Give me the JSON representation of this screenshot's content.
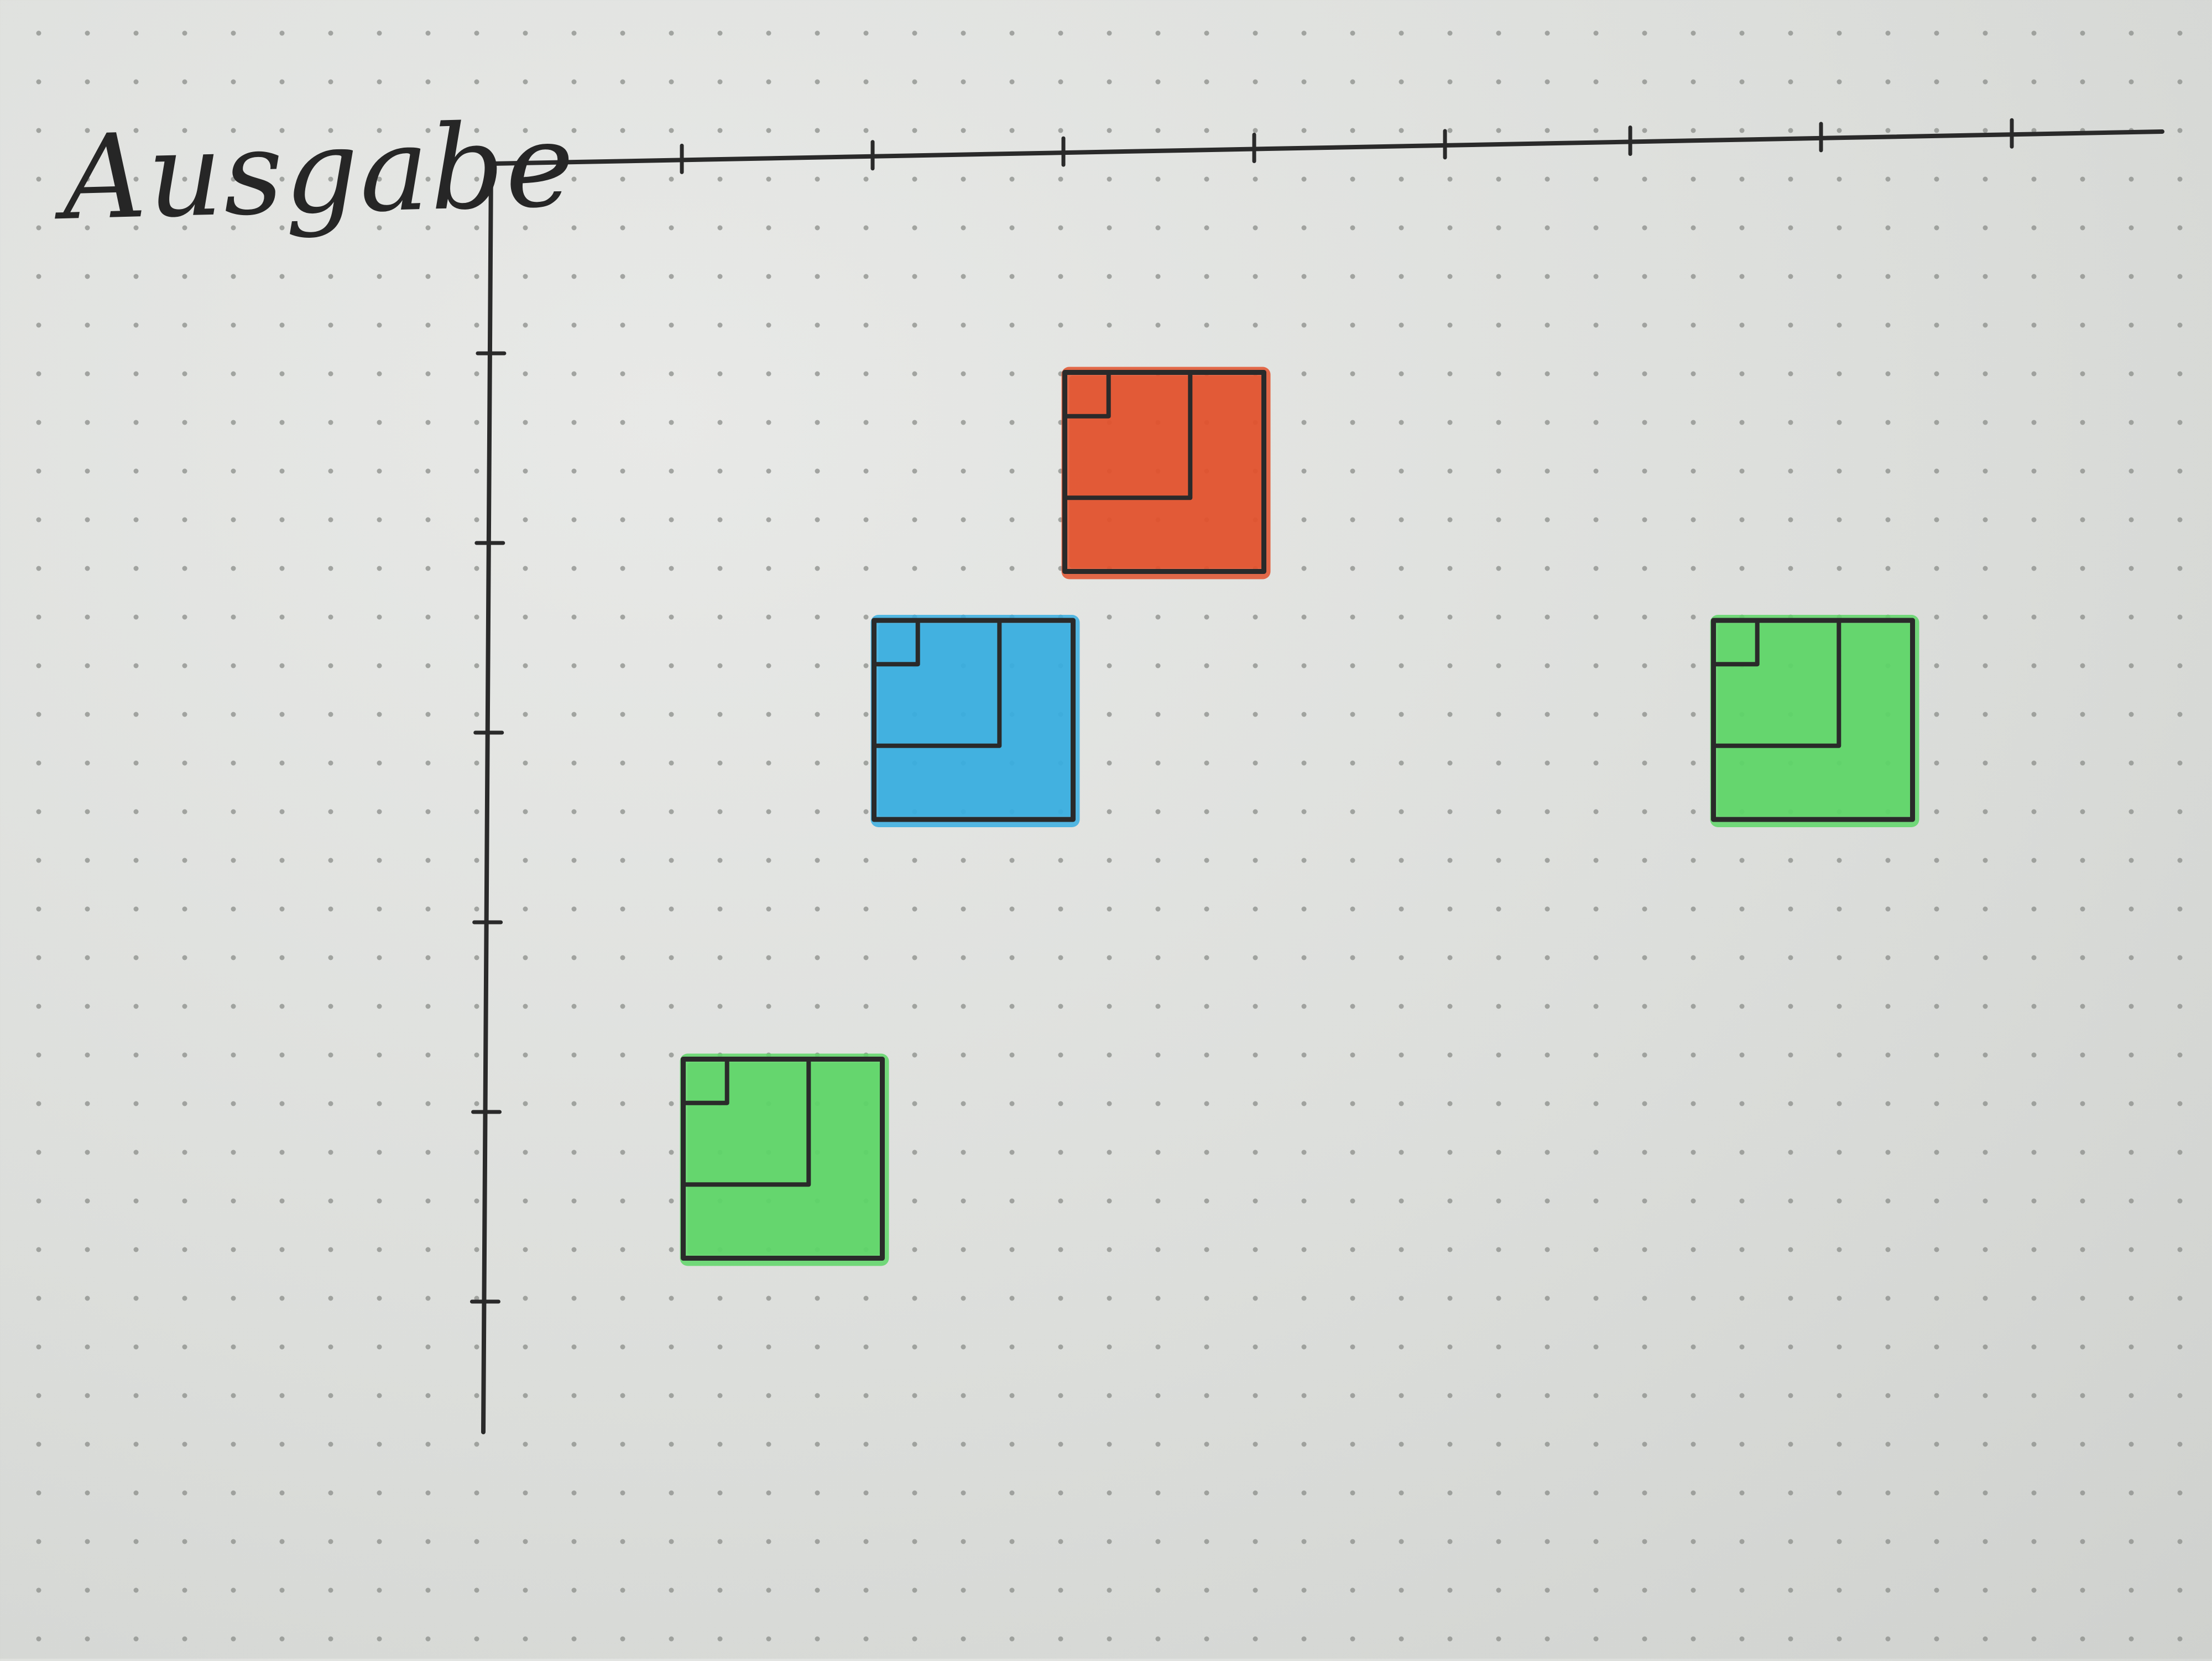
{
  "title": "Ausgabe",
  "colors": {
    "paper": "#dcdedb",
    "dot": "#8b8d8a",
    "ink": "#2a2a2a",
    "red": "#e2522d",
    "blue": "#38aee0",
    "green": "#5ed667"
  },
  "axes": {
    "x_ticks": 8,
    "y_ticks": 6
  },
  "cells": [
    {
      "id": "red",
      "color": "red",
      "col": 3.5,
      "row": 1.5
    },
    {
      "id": "blue",
      "color": "blue",
      "col": 2.5,
      "row": 2.8
    },
    {
      "id": "green",
      "color": "green",
      "col": 6.9,
      "row": 2.8
    },
    {
      "id": "green",
      "color": "green",
      "col": 1.5,
      "row": 5.1
    }
  ]
}
